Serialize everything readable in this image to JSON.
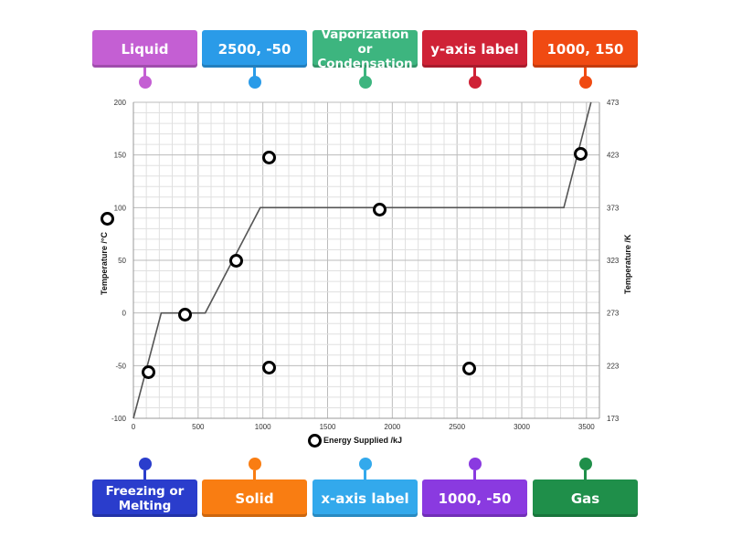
{
  "top_labels": [
    {
      "text": "Liquid",
      "color": "#c45fd3"
    },
    {
      "text": "2500, -50",
      "color": "#2a9be8"
    },
    {
      "text": "Vaporization or Condensation",
      "color": "#3db57f"
    },
    {
      "text": "y-axis label",
      "color": "#cf2236"
    },
    {
      "text": "1000, 150",
      "color": "#f04a12"
    }
  ],
  "bottom_labels": [
    {
      "text": "Freezing or Melting",
      "color": "#2a3dcc"
    },
    {
      "text": "Solid",
      "color": "#f97d12"
    },
    {
      "text": "x-axis label",
      "color": "#33a9ec"
    },
    {
      "text": "1000, -50",
      "color": "#8a3ae0"
    },
    {
      "text": "Gas",
      "color": "#1f8f4a"
    }
  ],
  "chart_data": {
    "type": "line",
    "xlabel": "Energy Supplied /kJ",
    "ylabel": "Temperature /°C",
    "y2label": "Temperature /K",
    "xlim": [
      0,
      3600
    ],
    "ylim": [
      -100,
      200
    ],
    "y2lim": [
      173,
      473
    ],
    "x_ticks": [
      "0",
      "500",
      "1000",
      "1500",
      "2000",
      "2500",
      "3000",
      "3500"
    ],
    "y_ticks": [
      "-100",
      "-50",
      "0",
      "50",
      "100",
      "150",
      "200"
    ],
    "y2_ticks": [
      "173",
      "223",
      "273",
      "323",
      "373",
      "423",
      "473"
    ],
    "grid": true,
    "series": [
      {
        "x": [
          0,
          215,
          555,
          980,
          3325,
          3535
        ],
        "y": [
          -100,
          0,
          0,
          100,
          100,
          200
        ],
        "color": "#555555"
      }
    ]
  }
}
